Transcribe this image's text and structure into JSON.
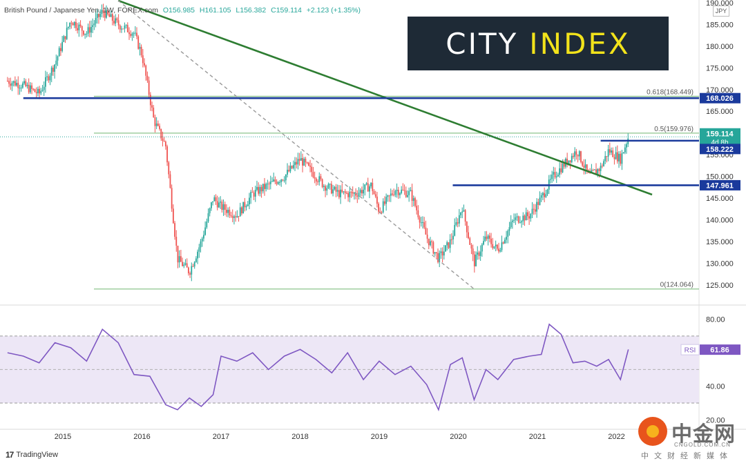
{
  "header": {
    "instrument": "British Pound / Japanese Yen, 1W, FOREX.com",
    "open": "O156.985",
    "high": "H161.105",
    "low": "L156.382",
    "close": "C159.114",
    "change": "+2.123 (+1.35%)"
  },
  "currency_tag": "JPY",
  "logo": {
    "word1": "CITY",
    "word2": "INDEX"
  },
  "footer": {
    "tradingview": "TradingView",
    "tv_mark": "17"
  },
  "watermark": {
    "cn": "中金网",
    "url": "CNGOLD.COM.CN",
    "sub": "中文财经新媒体"
  },
  "colors": {
    "up": "#26a69a",
    "down": "#ef5350",
    "blue_level": "#1a3a9c",
    "green_trend": "#2e7d32",
    "fib_line": "#8bc48b",
    "rsi": "#7e57c2",
    "rsi_band": "#ede7f6"
  },
  "chart_data": [
    {
      "type": "candlestick",
      "title": "British Pound / Japanese Yen, 1W, FOREX.com",
      "x_tick_labels": [
        "2015",
        "2016",
        "2017",
        "2018",
        "2019",
        "2020",
        "2021",
        "2022"
      ],
      "x_range": [
        "2014-05",
        "2022-05"
      ],
      "y_tick_labels": [
        "190.000",
        "185.000",
        "180.000",
        "175.000",
        "170.000",
        "165.000",
        "160.000",
        "155.000",
        "150.000",
        "145.000",
        "140.000",
        "135.000",
        "130.000",
        "125.000"
      ],
      "ylim": [
        121,
        190
      ],
      "close_path_years": [
        2014.3,
        2014.5,
        2014.7,
        2014.9,
        2015.1,
        2015.3,
        2015.5,
        2015.7,
        2015.9,
        2016.0,
        2016.15,
        2016.3,
        2016.45,
        2016.6,
        2016.75,
        2016.9,
        2017.0,
        2017.2,
        2017.4,
        2017.6,
        2017.8,
        2018.0,
        2018.1,
        2018.3,
        2018.5,
        2018.7,
        2018.9,
        2019.0,
        2019.2,
        2019.4,
        2019.6,
        2019.75,
        2019.9,
        2020.05,
        2020.2,
        2020.35,
        2020.5,
        2020.7,
        2020.9,
        2021.05,
        2021.2,
        2021.35,
        2021.5,
        2021.65,
        2021.8,
        2021.9,
        2022.05,
        2022.15
      ],
      "close_path_values": [
        172,
        171,
        169,
        176,
        186,
        183,
        188,
        185,
        183,
        178,
        163,
        157,
        131,
        128,
        135,
        145,
        143,
        141,
        146,
        148,
        150,
        154,
        152,
        148,
        146,
        146,
        148,
        142,
        147,
        146,
        136,
        131,
        135,
        143,
        130,
        136,
        133,
        140,
        141,
        145,
        150,
        153,
        156,
        150,
        152,
        156,
        154,
        159.1
      ],
      "last_price": 159.114,
      "countdown": "4d 8h",
      "price_labels": [
        {
          "text": "168.026",
          "value": 168.026,
          "color": "#1a3a9c"
        },
        {
          "text": "159.114",
          "value": 159.114,
          "color": "#26a69a"
        },
        {
          "text": "158.222",
          "value": 158.222,
          "color": "#1a3a9c"
        },
        {
          "text": "147.961",
          "value": 147.961,
          "color": "#1a3a9c"
        }
      ],
      "horizontal_levels": [
        {
          "value": 168.026,
          "color": "#1a3a9c",
          "from_year": 2014.5
        },
        {
          "value": 158.222,
          "color": "#1a3a9c",
          "from_year": 2021.8
        },
        {
          "value": 147.961,
          "color": "#1a3a9c",
          "from_year": 2019.93
        }
      ],
      "fibonacci": [
        {
          "ratio": "0.618",
          "value": 168.449,
          "text": "0.618(168.449)"
        },
        {
          "ratio": "0.5",
          "value": 159.976,
          "text": "0.5(159.976)"
        },
        {
          "ratio": "0",
          "value": 124.064,
          "text": "0(124.064)"
        }
      ],
      "trendlines": [
        {
          "style": "solid",
          "color": "#2e7d32",
          "from": [
            2015.7,
            190.5
          ],
          "to": [
            2022.45,
            145.8
          ]
        },
        {
          "style": "dashed",
          "color": "#999999",
          "from": [
            2015.7,
            190.5
          ],
          "to": [
            2020.2,
            124.06
          ]
        }
      ]
    },
    {
      "type": "line",
      "title": "RSI",
      "series": [
        {
          "name": "RSI",
          "last_value": 61.86
        }
      ],
      "last_label": "61.86",
      "y_tick_labels": [
        "80.00",
        "40.00",
        "20.00"
      ],
      "ylim": [
        16,
        86
      ],
      "bands": [
        30,
        70
      ],
      "midline": 50,
      "x_years": [
        2014.3,
        2014.5,
        2014.7,
        2014.9,
        2015.1,
        2015.3,
        2015.5,
        2015.7,
        2015.9,
        2016.1,
        2016.3,
        2016.45,
        2016.6,
        2016.75,
        2016.9,
        2017.0,
        2017.2,
        2017.4,
        2017.6,
        2017.8,
        2018.0,
        2018.2,
        2018.4,
        2018.6,
        2018.8,
        2019.0,
        2019.2,
        2019.4,
        2019.6,
        2019.75,
        2019.9,
        2020.05,
        2020.2,
        2020.35,
        2020.5,
        2020.7,
        2020.9,
        2021.05,
        2021.15,
        2021.3,
        2021.45,
        2021.6,
        2021.75,
        2021.9,
        2022.05,
        2022.15
      ],
      "values": [
        60,
        58,
        54,
        66,
        63,
        55,
        74,
        66,
        47,
        46,
        29,
        26,
        33,
        28,
        35,
        58,
        55,
        60,
        50,
        58,
        62,
        56,
        48,
        60,
        44,
        55,
        47,
        52,
        41,
        26,
        53,
        57,
        32,
        50,
        44,
        56,
        58,
        59,
        77,
        71,
        54,
        55,
        52,
        56,
        44,
        62
      ]
    }
  ]
}
